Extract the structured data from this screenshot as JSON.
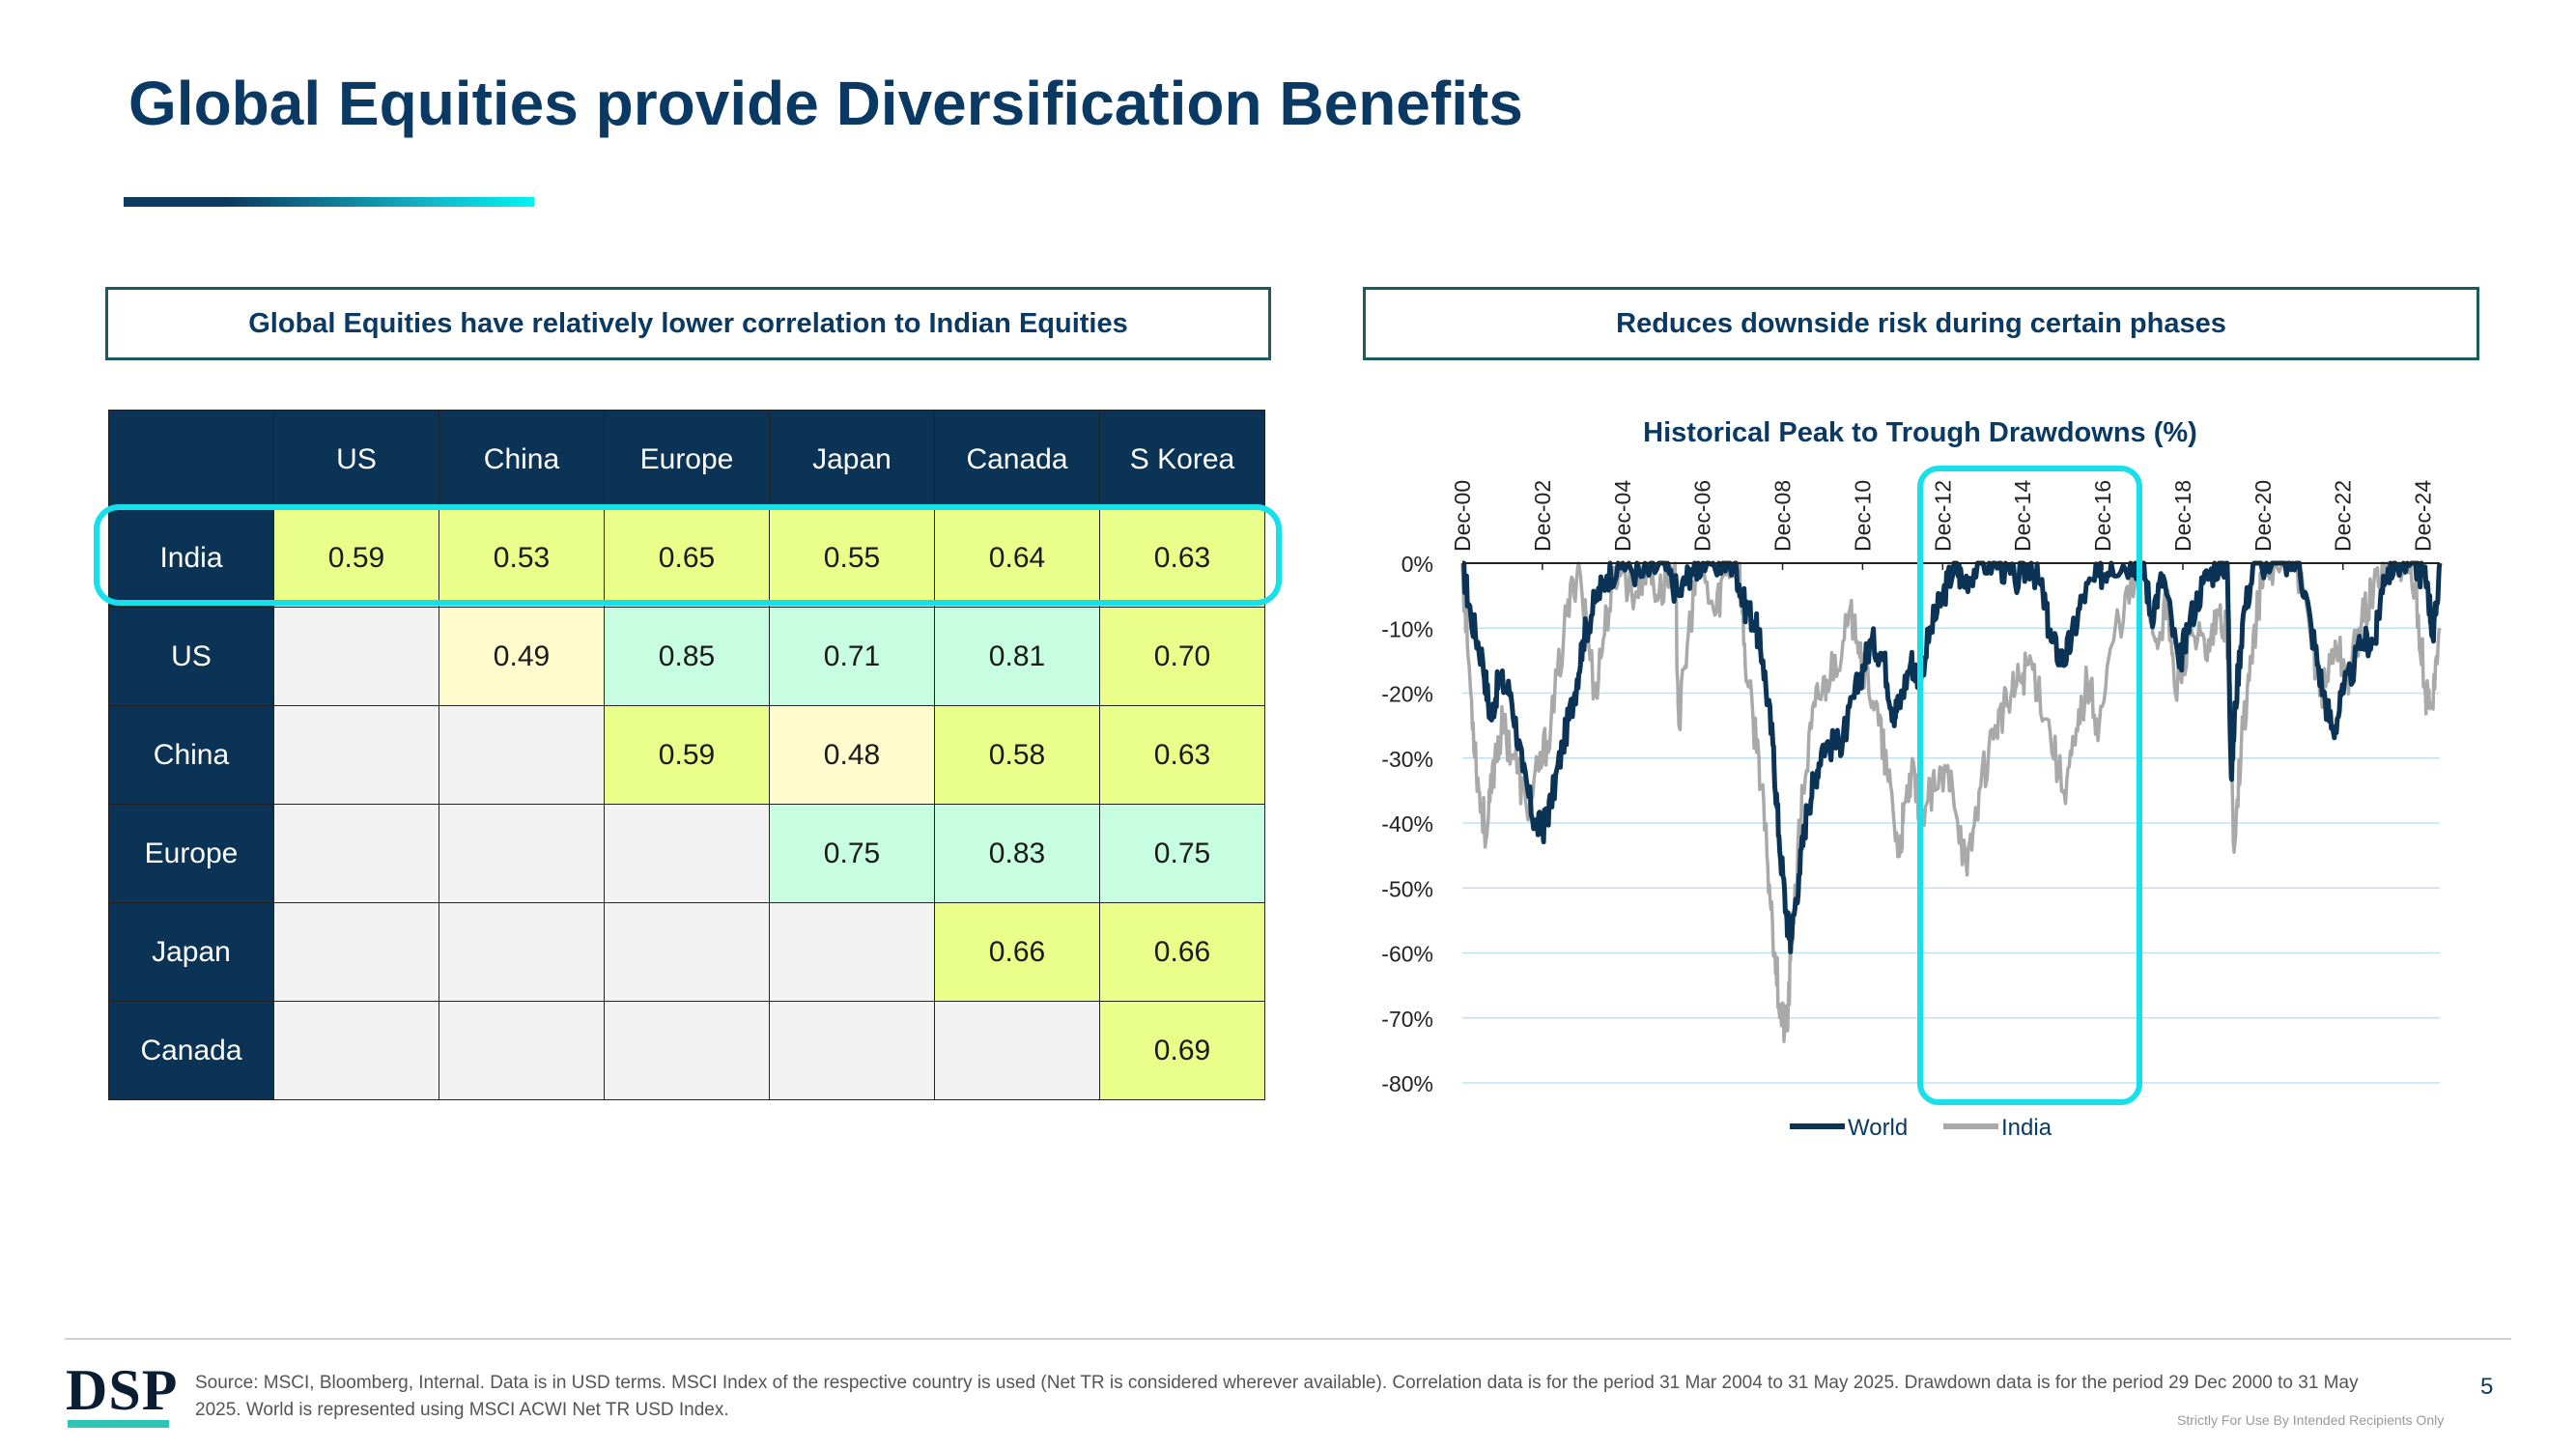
{
  "page": {
    "title": "Global Equities provide Diversification Benefits",
    "left_box": "Global Equities have relatively lower correlation to Indian Equities",
    "right_box": "Reduces downside risk during certain phases",
    "source": "Source: MSCI, Bloomberg, Internal. Data is in USD terms. MSCI Index of the respective country is used (Net TR is considered wherever available). Correlation data is for the period 31 Mar 2004 to 31 May 2025. Drawdown data is for the period 29 Dec 2000 to 31 May 2025. World is represented using MSCI ACWI Net TR USD Index.",
    "page_number": "5",
    "confidential": "Strictly For Use By Intended Recipients Only",
    "logo": "DSP"
  },
  "table": {
    "columns": [
      "US",
      "China",
      "Europe",
      "Japan",
      "Canada",
      "S Korea"
    ],
    "rows": [
      {
        "label": "India",
        "cells": [
          "0.59",
          "0.53",
          "0.65",
          "0.55",
          "0.64",
          "0.63"
        ],
        "colors": [
          "y",
          "y",
          "y",
          "y",
          "y",
          "y"
        ]
      },
      {
        "label": "US",
        "cells": [
          "",
          "0.49",
          "0.85",
          "0.71",
          "0.81",
          "0.70"
        ],
        "colors": [
          "e",
          "ly",
          "m",
          "m",
          "m",
          "y"
        ]
      },
      {
        "label": "China",
        "cells": [
          "",
          "",
          "0.59",
          "0.48",
          "0.58",
          "0.63"
        ],
        "colors": [
          "e",
          "e",
          "y",
          "ly",
          "y",
          "y"
        ]
      },
      {
        "label": "Europe",
        "cells": [
          "",
          "",
          "",
          "0.75",
          "0.83",
          "0.75"
        ],
        "colors": [
          "e",
          "e",
          "e",
          "m",
          "m",
          "m"
        ]
      },
      {
        "label": "Japan",
        "cells": [
          "",
          "",
          "",
          "",
          "0.66",
          "0.66"
        ],
        "colors": [
          "e",
          "e",
          "e",
          "e",
          "y",
          "y"
        ]
      },
      {
        "label": "Canada",
        "cells": [
          "",
          "",
          "",
          "",
          "",
          "0.69"
        ],
        "colors": [
          "e",
          "e",
          "e",
          "e",
          "e",
          "y"
        ]
      }
    ],
    "cell_colors": {
      "y": "#e9ff8a",
      "ly": "#fffbcc",
      "m": "#c7fde0",
      "e": "#f2f2f2"
    }
  },
  "chart_data": {
    "type": "line",
    "title": "Historical Peak to Trough Drawdowns (%)",
    "x_tick_labels": [
      "Dec-00",
      "Dec-02",
      "Dec-04",
      "Dec-06",
      "Dec-08",
      "Dec-10",
      "Dec-12",
      "Dec-14",
      "Dec-16",
      "Dec-18",
      "Dec-20",
      "Dec-22",
      "Dec-24"
    ],
    "y_tick_labels": [
      "0%",
      "-10%",
      "-20%",
      "-30%",
      "-40%",
      "-50%",
      "-60%",
      "-70%",
      "-80%"
    ],
    "ylim": [
      -80,
      0
    ],
    "xlim": [
      2000.99,
      2025.41
    ],
    "grid": true,
    "legend_position": "bottom",
    "highlighted_period": [
      2012.0,
      2017.0
    ],
    "series": [
      {
        "name": "World",
        "color": "#0a3356",
        "points": [
          [
            2000.99,
            0
          ],
          [
            2001.2,
            -8
          ],
          [
            2001.5,
            -15
          ],
          [
            2001.7,
            -24
          ],
          [
            2001.9,
            -18
          ],
          [
            2002.2,
            -20
          ],
          [
            2002.5,
            -32
          ],
          [
            2002.8,
            -40
          ],
          [
            2003.0,
            -41
          ],
          [
            2003.2,
            -37
          ],
          [
            2003.5,
            -28
          ],
          [
            2003.8,
            -20
          ],
          [
            2004.0,
            -12
          ],
          [
            2004.3,
            -6
          ],
          [
            2004.6,
            -2
          ],
          [
            2005.0,
            0
          ],
          [
            2005.5,
            -2
          ],
          [
            2006.0,
            0
          ],
          [
            2006.4,
            -5
          ],
          [
            2006.7,
            -1
          ],
          [
            2007.0,
            0
          ],
          [
            2007.5,
            0
          ],
          [
            2007.8,
            0
          ],
          [
            2008.0,
            -6
          ],
          [
            2008.3,
            -9
          ],
          [
            2008.5,
            -15
          ],
          [
            2008.75,
            -28
          ],
          [
            2008.9,
            -42
          ],
          [
            2009.1,
            -55
          ],
          [
            2009.2,
            -58
          ],
          [
            2009.4,
            -48
          ],
          [
            2009.6,
            -38
          ],
          [
            2009.8,
            -33
          ],
          [
            2010.0,
            -28
          ],
          [
            2010.4,
            -28
          ],
          [
            2010.6,
            -25
          ],
          [
            2010.9,
            -18
          ],
          [
            2011.2,
            -12
          ],
          [
            2011.5,
            -14
          ],
          [
            2011.75,
            -23
          ],
          [
            2011.9,
            -22
          ],
          [
            2012.2,
            -15
          ],
          [
            2012.4,
            -18
          ],
          [
            2012.7,
            -10
          ],
          [
            2013.0,
            -5
          ],
          [
            2013.3,
            0
          ],
          [
            2013.5,
            -3
          ],
          [
            2013.9,
            0
          ],
          [
            2014.4,
            0
          ],
          [
            2014.8,
            -3
          ],
          [
            2015.2,
            0
          ],
          [
            2015.5,
            -5
          ],
          [
            2015.7,
            -12
          ],
          [
            2016.0,
            -15
          ],
          [
            2016.2,
            -12
          ],
          [
            2016.5,
            -5
          ],
          [
            2016.9,
            -2
          ],
          [
            2017.2,
            0
          ],
          [
            2017.8,
            0
          ],
          [
            2018.0,
            0
          ],
          [
            2018.2,
            -8
          ],
          [
            2018.5,
            -2
          ],
          [
            2018.9,
            -16
          ],
          [
            2019.1,
            -10
          ],
          [
            2019.5,
            -3
          ],
          [
            2019.9,
            0
          ],
          [
            2020.1,
            0
          ],
          [
            2020.2,
            -33
          ],
          [
            2020.3,
            -22
          ],
          [
            2020.5,
            -8
          ],
          [
            2020.8,
            0
          ],
          [
            2021.5,
            0
          ],
          [
            2021.9,
            0
          ],
          [
            2022.2,
            -10
          ],
          [
            2022.5,
            -20
          ],
          [
            2022.75,
            -26
          ],
          [
            2023.0,
            -20
          ],
          [
            2023.5,
            -12
          ],
          [
            2023.8,
            -12
          ],
          [
            2024.0,
            -2
          ],
          [
            2024.3,
            0
          ],
          [
            2024.8,
            0
          ],
          [
            2025.1,
            -3
          ],
          [
            2025.25,
            -12
          ],
          [
            2025.41,
            0
          ]
        ]
      },
      {
        "name": "India",
        "color": "#a9a9a9",
        "points": [
          [
            2000.99,
            0
          ],
          [
            2001.2,
            -20
          ],
          [
            2001.4,
            -35
          ],
          [
            2001.6,
            -42
          ],
          [
            2001.8,
            -30
          ],
          [
            2002.0,
            -25
          ],
          [
            2002.3,
            -30
          ],
          [
            2002.6,
            -38
          ],
          [
            2002.9,
            -32
          ],
          [
            2003.2,
            -25
          ],
          [
            2003.6,
            -8
          ],
          [
            2003.9,
            0
          ],
          [
            2004.3,
            -20
          ],
          [
            2004.6,
            -8
          ],
          [
            2004.9,
            0
          ],
          [
            2005.3,
            -5
          ],
          [
            2005.6,
            0
          ],
          [
            2005.9,
            -5
          ],
          [
            2006.3,
            0
          ],
          [
            2006.4,
            -25
          ],
          [
            2006.7,
            -8
          ],
          [
            2006.9,
            0
          ],
          [
            2007.3,
            -8
          ],
          [
            2007.6,
            0
          ],
          [
            2007.9,
            0
          ],
          [
            2008.1,
            -18
          ],
          [
            2008.4,
            -30
          ],
          [
            2008.6,
            -45
          ],
          [
            2008.8,
            -60
          ],
          [
            2008.95,
            -70
          ],
          [
            2009.1,
            -72
          ],
          [
            2009.25,
            -55
          ],
          [
            2009.5,
            -35
          ],
          [
            2009.8,
            -22
          ],
          [
            2010.1,
            -18
          ],
          [
            2010.5,
            -12
          ],
          [
            2010.8,
            -8
          ],
          [
            2011.0,
            -15
          ],
          [
            2011.3,
            -22
          ],
          [
            2011.6,
            -32
          ],
          [
            2011.9,
            -45
          ],
          [
            2012.0,
            -40
          ],
          [
            2012.2,
            -33
          ],
          [
            2012.5,
            -38
          ],
          [
            2012.8,
            -35
          ],
          [
            2013.2,
            -32
          ],
          [
            2013.6,
            -48
          ],
          [
            2013.9,
            -35
          ],
          [
            2014.3,
            -25
          ],
          [
            2014.6,
            -22
          ],
          [
            2014.9,
            -18
          ],
          [
            2015.2,
            -15
          ],
          [
            2015.6,
            -24
          ],
          [
            2016.0,
            -35
          ],
          [
            2016.3,
            -28
          ],
          [
            2016.6,
            -18
          ],
          [
            2016.9,
            -25
          ],
          [
            2017.3,
            -10
          ],
          [
            2017.8,
            -3
          ],
          [
            2018.0,
            0
          ],
          [
            2018.3,
            -12
          ],
          [
            2018.6,
            -6
          ],
          [
            2018.8,
            -20
          ],
          [
            2019.2,
            -10
          ],
          [
            2019.6,
            -15
          ],
          [
            2019.9,
            -8
          ],
          [
            2020.15,
            -12
          ],
          [
            2020.25,
            -43
          ],
          [
            2020.45,
            -28
          ],
          [
            2020.7,
            -15
          ],
          [
            2020.95,
            -3
          ],
          [
            2021.3,
            0
          ],
          [
            2021.8,
            0
          ],
          [
            2022.2,
            -12
          ],
          [
            2022.5,
            -20
          ],
          [
            2022.8,
            -12
          ],
          [
            2023.1,
            -18
          ],
          [
            2023.4,
            -10
          ],
          [
            2023.7,
            -5
          ],
          [
            2024.0,
            0
          ],
          [
            2024.4,
            0
          ],
          [
            2024.8,
            -3
          ],
          [
            2025.05,
            -20
          ],
          [
            2025.2,
            -22
          ],
          [
            2025.41,
            -10
          ]
        ]
      }
    ]
  }
}
